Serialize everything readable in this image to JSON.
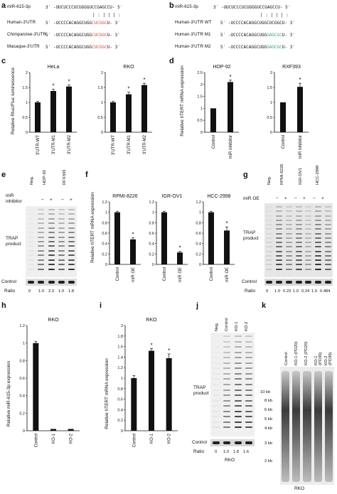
{
  "panel_labels": {
    "a": "a",
    "b": "b",
    "c": "c",
    "d": "d",
    "e": "e",
    "f": "f",
    "g": "g",
    "h": "h",
    "i": "i",
    "j": "j",
    "k": "k"
  },
  "panel_a": {
    "mir_label": "miR-615-3p",
    "mir_seq": "3′ -UUCUCCCUCUGGGUCCGAGCCU- 5′",
    "pairing": "| : | | | :",
    "rows": [
      {
        "label": "Human-3′UTR",
        "five": "5′",
        "seq_black": "-UCCCCACAGGCUGG",
        "seq_red": "CUCGGC",
        "tail": "U-",
        "three": "3′"
      },
      {
        "label": "Chimpanzee-3′UTR",
        "five": "5′",
        "seq_black": "-UCCCCACAGGCUGG",
        "seq_red": "CUCGGC",
        "tail": "U-",
        "three": "3′"
      },
      {
        "label": "Macaque-3′UTR",
        "five": "5′",
        "seq_black": "-UCCCCACAGGCUGG",
        "seq_red": "CUCGGC",
        "tail": "U-",
        "three": "3′"
      }
    ]
  },
  "panel_b": {
    "mir_label": "miR-615-3p",
    "mir_seq": "3′ -UUCUCCCUCUGGGUCCGAGCCU- 5′",
    "pairing": "| : | | | :",
    "rows": [
      {
        "label": "Human-3′UTR WT",
        "five": "5′",
        "seq_black": "-UCCCCACAGGCUGG",
        "seq_mut": "CUCGGC",
        "tail": "U-",
        "three": "3′",
        "mut_color": "#111111"
      },
      {
        "label": "Human-3′UTR M1",
        "five": "5′",
        "seq_black": "-UCCCCACAGGCUGG",
        "seq_mut": "GAGCGC",
        "tail": "U-",
        "three": "3′",
        "mut_color": "#2aa57a"
      },
      {
        "label": "Human-3′UTR M2",
        "five": "5′",
        "seq_black": "-UCCCCACAGGCUGG",
        "seq_mut": "GAGCGC",
        "tail": "U-",
        "three": "3′",
        "mut_color": "#2aa57a"
      }
    ]
  },
  "panel_c": {
    "ylabel": "Relative Rluc/Fluc luminescence",
    "chart_data": [
      {
        "type": "bar",
        "title": "HeLa",
        "categories": [
          "3′UTR-WT",
          "3′UTR-M1",
          "3′UTR-M2"
        ],
        "values": [
          1.0,
          1.38,
          1.53
        ],
        "errors": [
          0.04,
          0.06,
          0.05
        ],
        "sig": [
          "",
          "*",
          "*"
        ],
        "ylim": [
          0,
          2
        ],
        "yticks": [
          "0",
          "0.5",
          "1",
          "1.5",
          "2"
        ]
      },
      {
        "type": "bar",
        "title": "RKO",
        "categories": [
          "3′UTR-WT",
          "3′UTR-M1",
          "3′UTR-M2"
        ],
        "values": [
          1.0,
          1.27,
          1.58
        ],
        "errors": [
          0.04,
          0.07,
          0.06
        ],
        "sig": [
          "",
          "*",
          "*"
        ],
        "ylim": [
          0,
          2
        ],
        "yticks": [
          "0",
          "0.5",
          "1",
          "1.5",
          "2"
        ]
      }
    ]
  },
  "panel_d": {
    "ylabel": "Relative hTERT mRNA expression",
    "chart_data": [
      {
        "type": "bar",
        "title": "HOP-92",
        "categories": [
          "Control",
          "miR inhibitor"
        ],
        "values": [
          1.0,
          2.1
        ],
        "errors": [
          0.0,
          0.08
        ],
        "sig": [
          "",
          "*"
        ],
        "ylim": [
          0,
          2.5
        ],
        "yticks": [
          "0",
          "0.5",
          "1",
          "1.5",
          "2",
          "2.5"
        ]
      },
      {
        "type": "bar",
        "title": "RXF393",
        "categories": [
          "Control",
          "miR inhibitor"
        ],
        "values": [
          1.0,
          1.52
        ],
        "errors": [
          0.0,
          0.12
        ],
        "sig": [
          "",
          "*"
        ],
        "ylim": [
          0,
          2
        ],
        "yticks": [
          "0",
          "0.5",
          "1",
          "1.5",
          "2"
        ]
      }
    ]
  },
  "panel_e": {
    "neg": "Neg.",
    "cells": [
      "HOP-92",
      "RFX393"
    ],
    "mir_label": "miR",
    "inhibitor_label": "inhibitor",
    "signs": [
      "−",
      "+",
      "−",
      "+"
    ],
    "trap_label": "TRAP",
    "product_label": "product",
    "control_label": "Control",
    "ratio_label": "Ratio",
    "ratios": [
      "0",
      "1.0",
      "2.3",
      "1.0",
      "1.8"
    ]
  },
  "panel_f": {
    "ylabel": "Relative hTERT mRNA expression",
    "chart_data": [
      {
        "type": "bar",
        "title": "RPMI-8226",
        "categories": [
          "Control",
          "miR OE"
        ],
        "values": [
          1.0,
          0.48
        ],
        "errors": [
          0.02,
          0.03
        ],
        "sig": [
          "",
          "*"
        ],
        "ylim": [
          0,
          1.2
        ],
        "yticks": [
          "0",
          "0.2",
          "0.4",
          "0.6",
          "0.8",
          "1",
          "1.2"
        ]
      },
      {
        "type": "bar",
        "title": "IGR-OV1",
        "categories": [
          "Control",
          "miR OE"
        ],
        "values": [
          1.0,
          0.23
        ],
        "errors": [
          0.02,
          0.02
        ],
        "sig": [
          "",
          "*"
        ],
        "ylim": [
          0,
          1.2
        ],
        "yticks": [
          "0",
          "0.2",
          "0.4",
          "0.6",
          "0.8",
          "1",
          "1.2"
        ]
      },
      {
        "type": "bar",
        "title": "HCC-2998",
        "categories": [
          "Control",
          "miR OE"
        ],
        "values": [
          1.0,
          0.65
        ],
        "errors": [
          0.02,
          0.07
        ],
        "sig": [
          "",
          "*"
        ],
        "ylim": [
          0,
          1.2
        ],
        "yticks": [
          "0",
          "0.2",
          "0.4",
          "0.6",
          "0.8",
          "1",
          "1.2"
        ]
      }
    ]
  },
  "panel_g": {
    "neg": "Neg.",
    "cells": [
      "RPMI-8226",
      "IGR-OV1",
      "HCC-2998"
    ],
    "mir_oe_label": "miR OE",
    "signs": [
      "−",
      "+",
      "−",
      "+",
      "−",
      "+"
    ],
    "trap_label": "TRAP",
    "product_label": "product",
    "control_label": "Control",
    "ratio_label": "Ratio",
    "ratios": [
      "0",
      "1.0",
      "0.23",
      "1.0",
      "0.24",
      "1.0",
      "0.484"
    ]
  },
  "panel_h": {
    "ylabel": "Relative miR-615-3p expression",
    "chart_data": {
      "type": "bar",
      "title": "RKO",
      "categories": [
        "Control",
        "KO-1",
        "KO-2"
      ],
      "values": [
        1.0,
        0.02,
        0.02
      ],
      "errors": [
        0.02,
        0.0,
        0.0
      ],
      "sig": [
        "",
        "",
        ""
      ],
      "ylim": [
        0,
        1.2
      ],
      "yticks": [
        "0",
        "0.2",
        "0.4",
        "0.6",
        "0.8",
        "1",
        "1.2"
      ]
    }
  },
  "panel_i": {
    "ylabel": "Relative hTERT mRNA expression",
    "chart_data": {
      "type": "bar",
      "title": "RKO",
      "categories": [
        "Control",
        "KO-1",
        "KO-2"
      ],
      "values": [
        1.0,
        1.52,
        1.38
      ],
      "errors": [
        0.05,
        0.04,
        0.08
      ],
      "sig": [
        "",
        "*",
        "*"
      ],
      "ylim": [
        0,
        2
      ],
      "yticks": [
        "0",
        "0.2",
        "0.4",
        "0.6",
        "0.8",
        "1",
        "1.2",
        "1.4",
        "1.6",
        "1.8",
        "2"
      ]
    }
  },
  "panel_j": {
    "lanes": [
      "Neg.",
      "Control",
      "KO-1",
      "KO-2"
    ],
    "trap_label": "TRAP",
    "product_label": "product",
    "control_label": "Control",
    "ratio_label": "Ratio",
    "ratios": [
      "0",
      "1.0",
      "1.8",
      "1.6"
    ],
    "cell_label": "RKO"
  },
  "panel_k": {
    "lanes": [
      "Control",
      "KO-1 (PD20)",
      "KO-2 (PD20)",
      "KO-1 (PD30)",
      "KO-2 (PD30)"
    ],
    "markers": [
      "10 kb",
      "8 kb",
      "6 kb",
      "5 kb",
      "4 kb",
      "3 kb",
      "2 kb"
    ],
    "cell_label": "RKO"
  }
}
